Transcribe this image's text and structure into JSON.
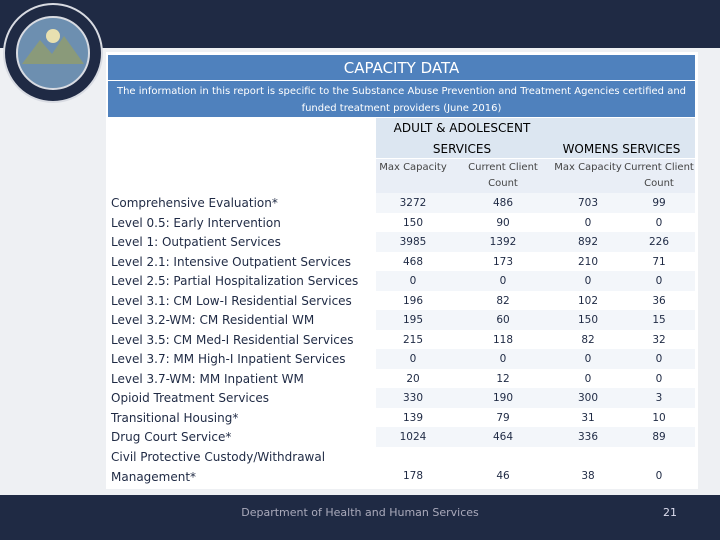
{
  "title": "CAPACITY DATA",
  "subtitle": "The information in this report is specific to the Substance Abuse Prevention and Treatment Agencies certified and funded treatment providers (June 2016)",
  "table": {
    "groups": [
      "ADULT & ADOLESCENT SERVICES",
      "WOMENS SERVICES"
    ],
    "columns": [
      "Max Capacity",
      "Current Client Count",
      "Max Capacity",
      "Current Client Count"
    ],
    "rows": [
      [
        "Comprehensive Evaluation*",
        3272,
        486,
        703,
        99
      ],
      [
        "Level 0.5: Early Intervention",
        150,
        90,
        0,
        0
      ],
      [
        "Level 1: Outpatient Services",
        3985,
        1392,
        892,
        226
      ],
      [
        "Level 2.1: Intensive Outpatient Services",
        468,
        173,
        210,
        71
      ],
      [
        "Level 2.5: Partial Hospitalization Services",
        0,
        0,
        0,
        0
      ],
      [
        "Level 3.1: CM Low-I Residential Services",
        196,
        82,
        102,
        36
      ],
      [
        "Level 3.2-WM: CM Residential WM",
        195,
        60,
        150,
        15
      ],
      [
        "Level 3.5: CM Med-I Residential Services",
        215,
        118,
        82,
        32
      ],
      [
        "Level 3.7: MM High-I Inpatient Services",
        0,
        0,
        0,
        0
      ],
      [
        "Level 3.7-WM: MM Inpatient WM",
        20,
        12,
        0,
        0
      ],
      [
        "Opioid Treatment Services",
        330,
        190,
        300,
        3
      ],
      [
        "Transitional Housing*",
        139,
        79,
        31,
        10
      ],
      [
        "Drug Court Service*",
        1024,
        464,
        336,
        89
      ],
      [
        "Civil Protective Custody/Withdrawal Management*",
        178,
        46,
        38,
        0
      ]
    ]
  },
  "footer": "Department of Health and Human Services",
  "page_number": 21
}
